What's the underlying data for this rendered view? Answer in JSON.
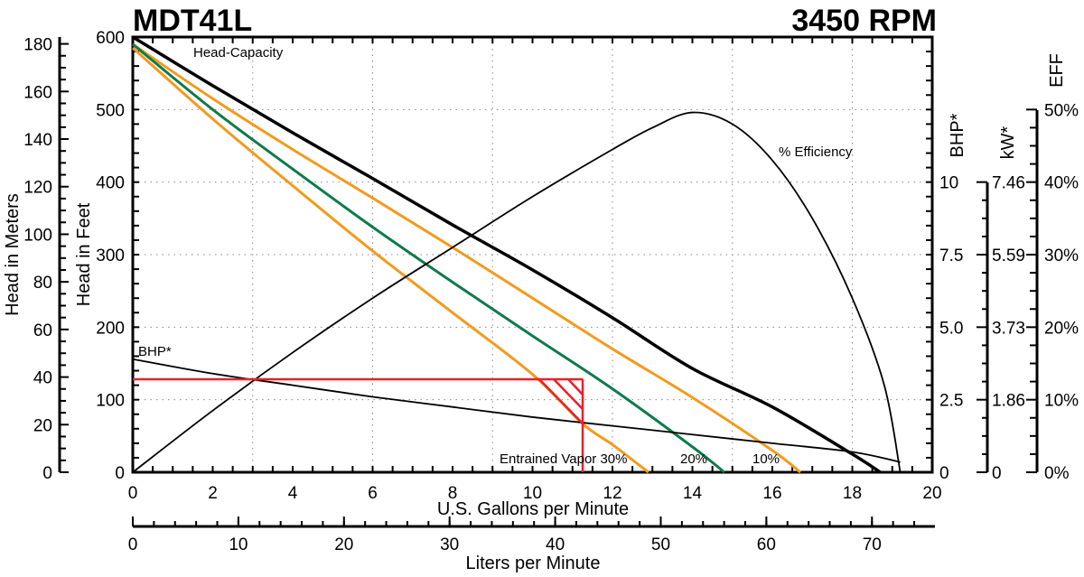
{
  "header": {
    "model": "MDT41L",
    "speed": "3450 RPM"
  },
  "axes": {
    "meters_label": "Head in Meters",
    "feet_label": "Head in Feet",
    "gpm_label": "U.S. Gallons per Minute",
    "lpm_label": "Liters per Minute",
    "bhp_label": "BHP*",
    "kw_label": "kW*",
    "eff_label": "EFF",
    "meters_ticks": [
      "0",
      "20",
      "40",
      "60",
      "80",
      "100",
      "120",
      "140",
      "160",
      "180"
    ],
    "feet_ticks": [
      "0",
      "100",
      "200",
      "300",
      "400",
      "500",
      "600"
    ],
    "gpm_ticks": [
      "0",
      "2",
      "4",
      "6",
      "8",
      "10",
      "12",
      "14",
      "16",
      "18",
      "20"
    ],
    "lpm_ticks": [
      "0",
      "10",
      "20",
      "30",
      "40",
      "50",
      "60",
      "70"
    ],
    "bhp_ticks": [
      "0",
      "2.5",
      "5.0",
      "7.5",
      "10"
    ],
    "kw_ticks": [
      "0",
      "1.86",
      "3.73",
      "5.59",
      "7.46"
    ],
    "eff_ticks": [
      "0%",
      "10%",
      "20%",
      "30%",
      "40%",
      "50%"
    ]
  },
  "annotations": {
    "head_capacity": "Head-Capacity",
    "efficiency": "% Efficiency",
    "bhp": "BHP*",
    "vapor_30": "Entrained Vapor 30%",
    "vapor_20": "20%",
    "vapor_10": "10%"
  },
  "colors": {
    "head": "#000000",
    "vapor_orange": "#f39a1e",
    "vapor_green": "#0e7a4a",
    "operating_point": "#e8202a"
  },
  "chart_data": {
    "type": "line",
    "title": "MDT41L 3450 RPM",
    "xlabel": "U.S. Gallons per Minute",
    "ylabel": "Head in Feet",
    "xlim": [
      0,
      20
    ],
    "ylim": [
      0,
      600
    ],
    "secondary_axes": {
      "head_meters": [
        0,
        180
      ],
      "bhp": [
        0,
        10
      ],
      "kw": [
        0,
        7.46
      ],
      "efficiency_pct": [
        0,
        50
      ],
      "liters_per_minute": [
        0,
        75
      ]
    },
    "grid": true,
    "series": [
      {
        "name": "Head-Capacity",
        "unit": "ft",
        "x": [
          0,
          2,
          4,
          6,
          8,
          10,
          12,
          14,
          16,
          18,
          18.7
        ],
        "y": [
          600,
          533,
          468,
          405,
          341,
          279,
          213,
          143,
          90,
          25,
          0
        ]
      },
      {
        "name": "Entrained Vapor 10%",
        "unit": "ft",
        "x": [
          0,
          2,
          4,
          6,
          8,
          10,
          12,
          14,
          16,
          16.7
        ],
        "y": [
          590,
          515,
          445,
          378,
          310,
          240,
          170,
          103,
          30,
          0
        ]
      },
      {
        "name": "Entrained Vapor 20%",
        "unit": "ft",
        "x": [
          0,
          2,
          4,
          6,
          8,
          10,
          12,
          14,
          14.8
        ],
        "y": [
          590,
          500,
          418,
          338,
          262,
          188,
          115,
          35,
          0
        ]
      },
      {
        "name": "Entrained Vapor 30%",
        "unit": "ft",
        "x": [
          0,
          2,
          4,
          6,
          8,
          10,
          11.25,
          12,
          12.9
        ],
        "y": [
          585,
          487,
          395,
          305,
          220,
          135,
          67,
          38,
          0
        ]
      },
      {
        "name": "% Efficiency",
        "unit": "%",
        "x": [
          0,
          2,
          4,
          6,
          8,
          10,
          12,
          13,
          14,
          15,
          16,
          17,
          18,
          18.8,
          19.2
        ],
        "y": [
          0,
          8.5,
          16.5,
          24,
          31,
          38,
          44.5,
          47.5,
          49.6,
          48,
          43,
          35,
          24,
          12,
          0
        ]
      },
      {
        "name": "BHP*",
        "unit": "hp",
        "x": [
          0,
          2,
          4,
          6,
          8,
          10,
          12,
          14,
          16,
          18,
          19.2
        ],
        "y": [
          3.9,
          3.4,
          3.0,
          2.6,
          2.25,
          1.9,
          1.6,
          1.3,
          1.0,
          0.7,
          0.35
        ]
      }
    ],
    "operating_point": {
      "gpm": 11.25,
      "head_ft": 128,
      "hatched_region": "between Entrained Vapor 30% and 20% curves below 128 ft"
    }
  }
}
